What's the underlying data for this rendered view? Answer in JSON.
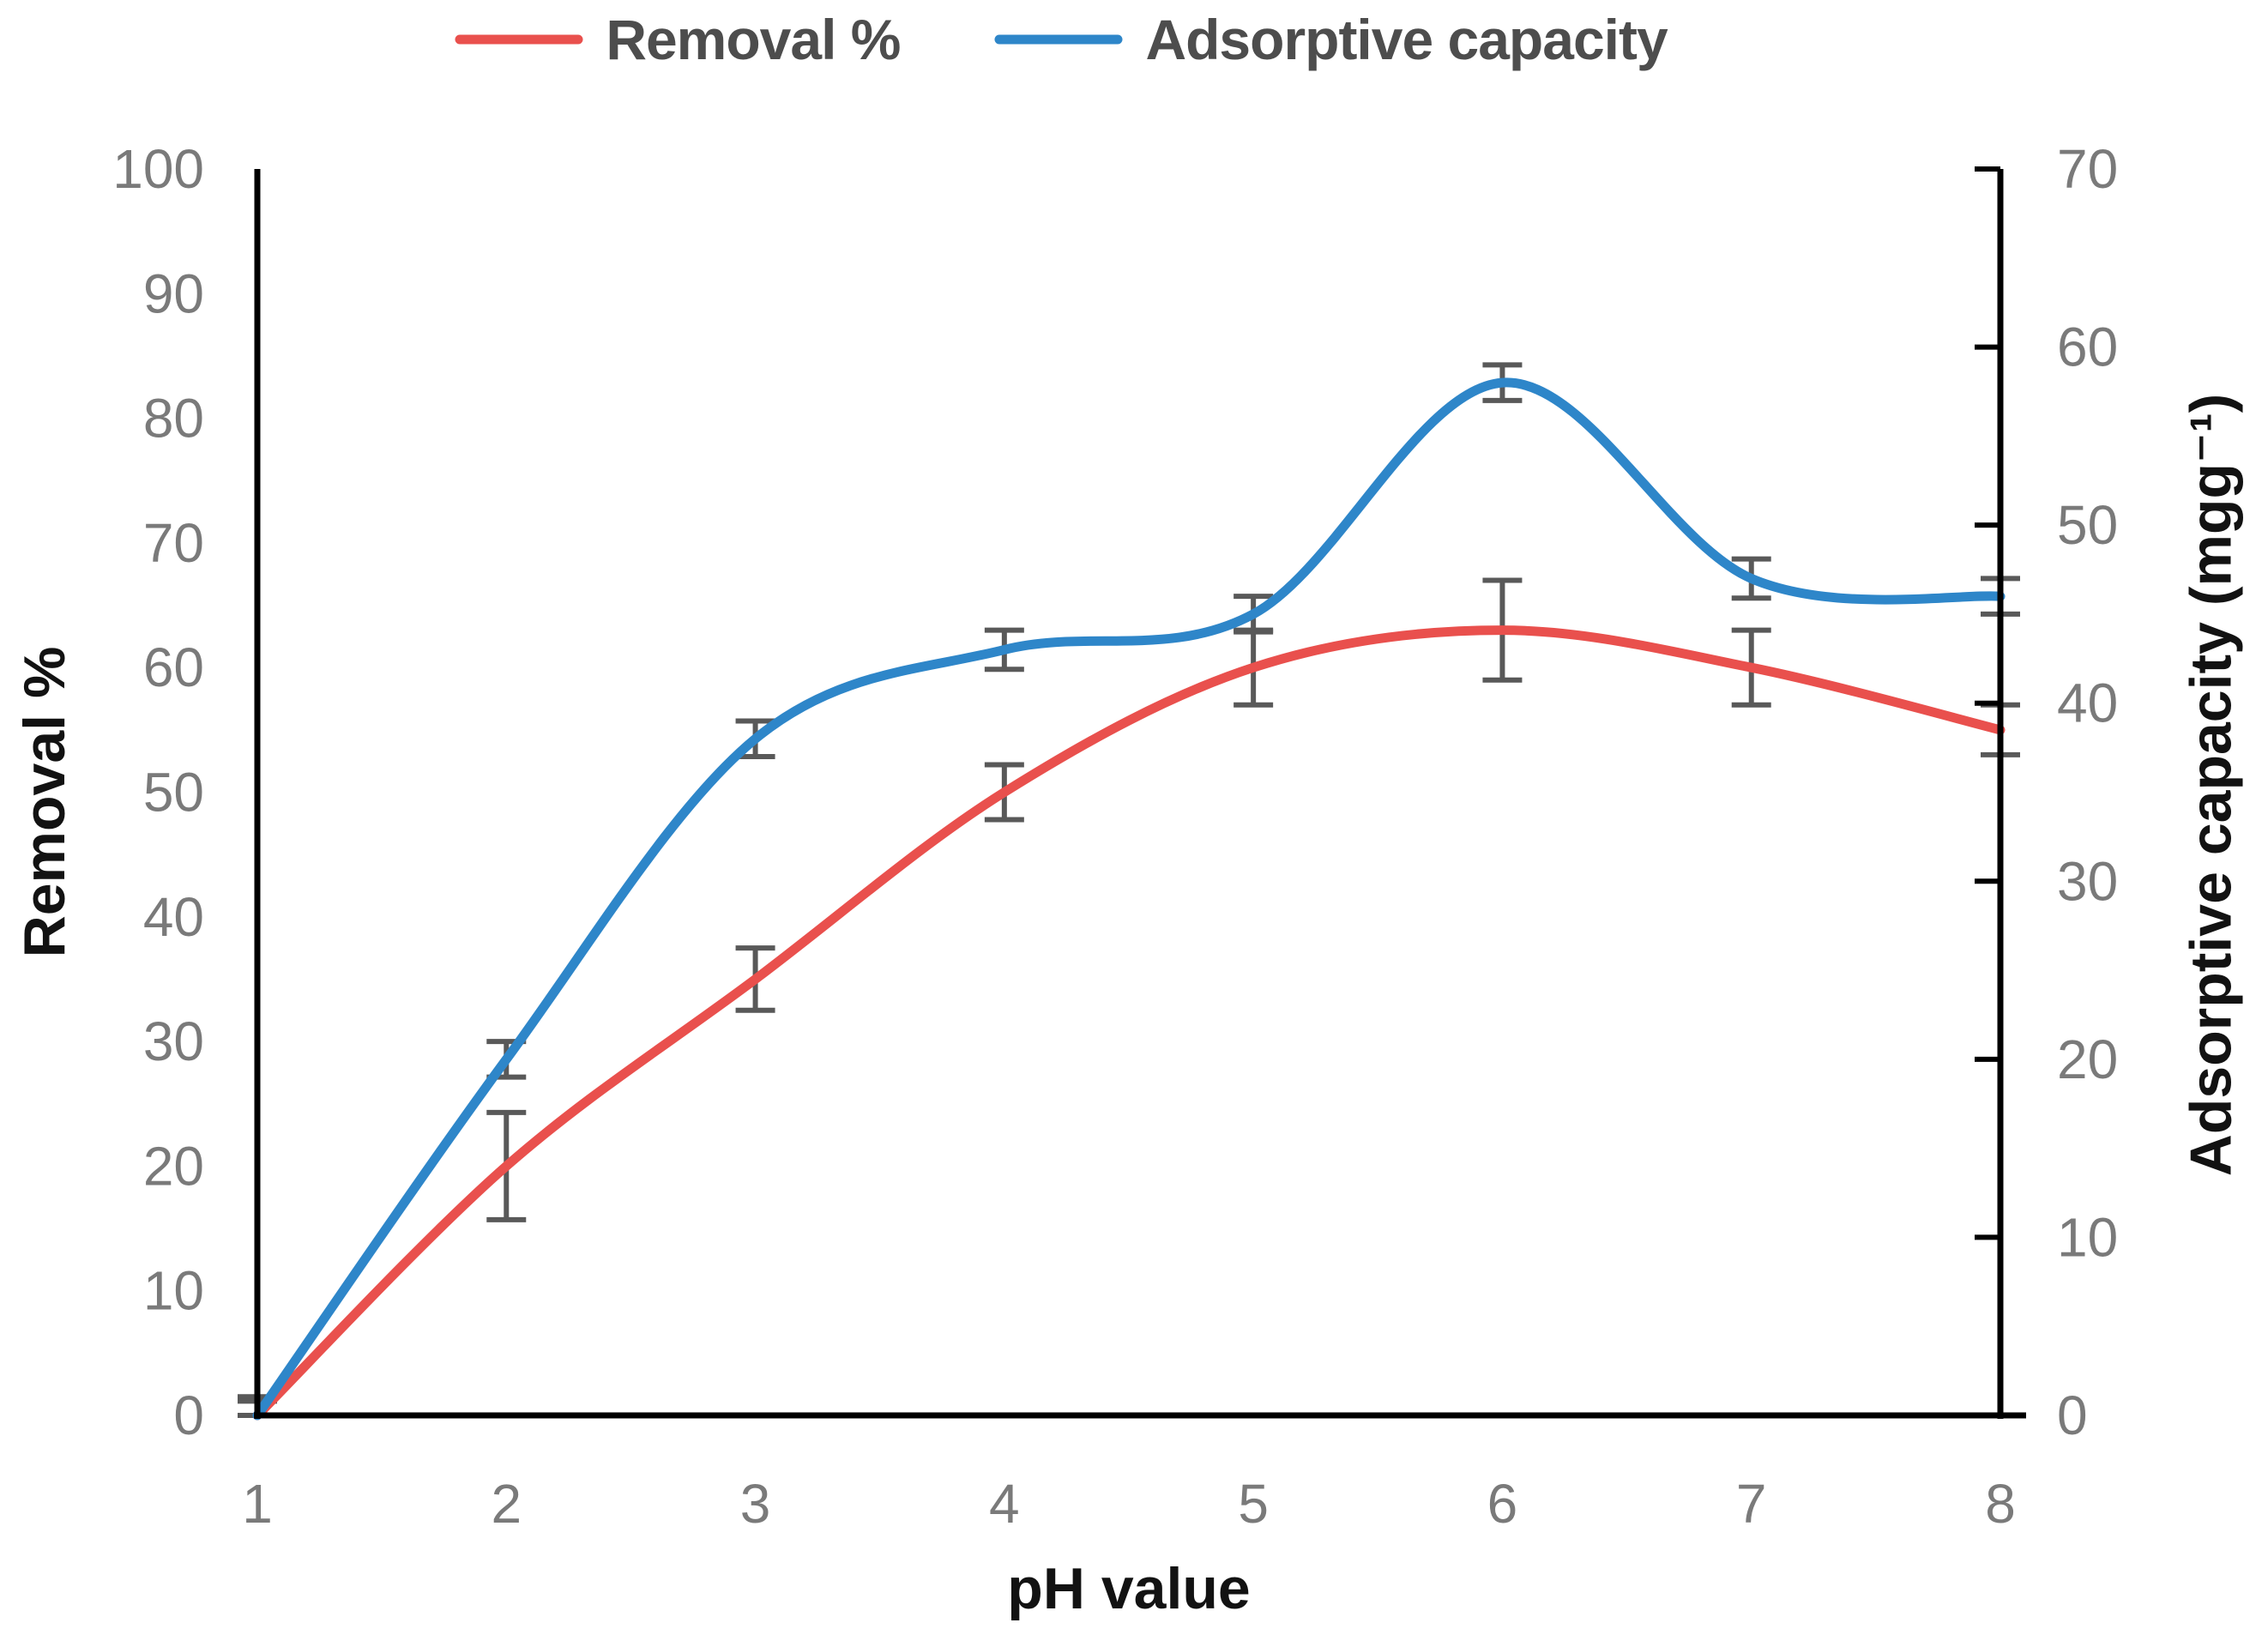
{
  "chart_data": {
    "type": "line",
    "x": [
      1,
      2,
      3,
      4,
      5,
      6,
      7,
      8
    ],
    "xlabel": "pH value",
    "x_axis": {
      "label": "pH value",
      "min": 1,
      "max": 8,
      "ticks": [
        1,
        2,
        3,
        4,
        5,
        6,
        7,
        8
      ]
    },
    "left_axis": {
      "label": "Removal %",
      "min": 0,
      "max": 100,
      "ticks": [
        0,
        10,
        20,
        30,
        40,
        50,
        60,
        70,
        80,
        90,
        100
      ]
    },
    "right_axis": {
      "label": "Adsorptive capacity (mgg⁻¹)",
      "min": 0,
      "max": 70,
      "ticks": [
        0,
        10,
        20,
        30,
        40,
        50,
        60,
        70
      ]
    },
    "series": [
      {
        "name": "Removal %",
        "axis": "left",
        "color": "#E9504D",
        "smooth": true,
        "values": [
          0,
          20,
          35,
          50,
          60,
          63,
          60,
          55
        ],
        "error": [
          1.5,
          4.3,
          2.5,
          2.2,
          3,
          4,
          3,
          2
        ]
      },
      {
        "name": "Adsorptive capacity",
        "axis": "right",
        "color": "#2E86C9",
        "smooth": true,
        "values": [
          0,
          20,
          38,
          43,
          45,
          58,
          47,
          46
        ],
        "error": [
          0.8,
          1,
          1,
          1.1,
          1,
          1,
          1.1,
          1
        ]
      }
    ],
    "legend_position": "top",
    "grid": false,
    "error_bar_color": "#595959",
    "axis_color": "#000000",
    "tick_label_color": "#7a7a7a"
  }
}
